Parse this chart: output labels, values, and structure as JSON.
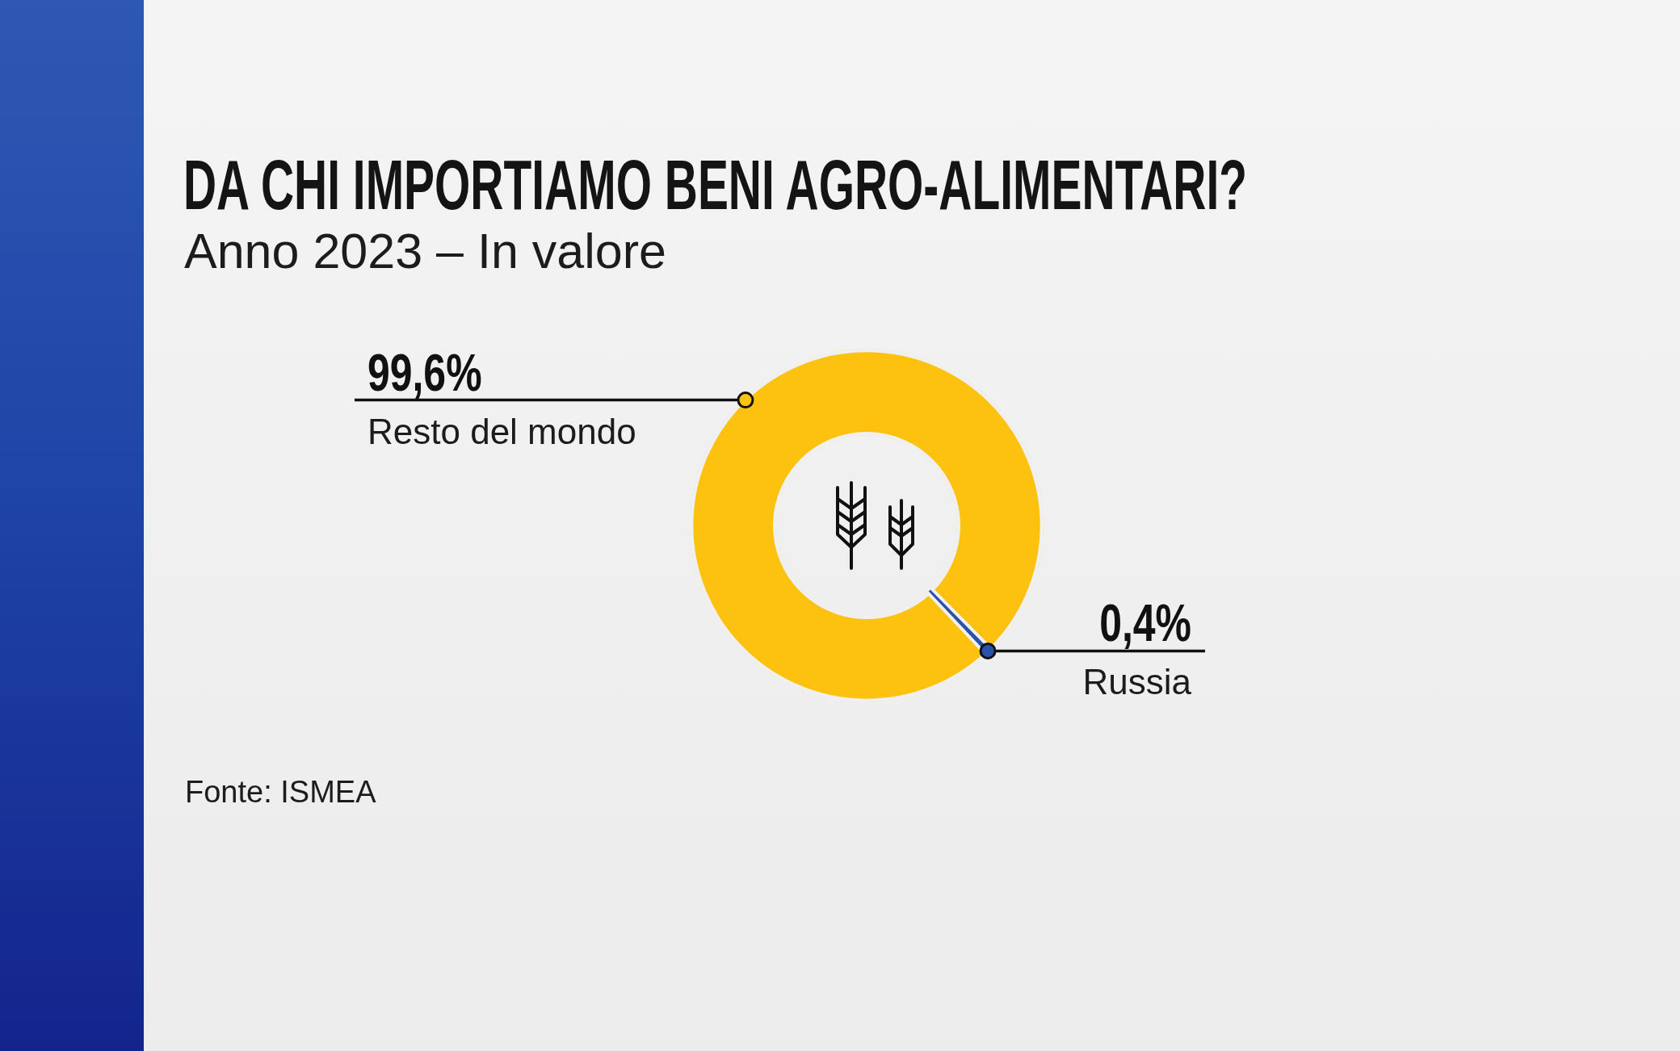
{
  "chart_data": {
    "type": "donut",
    "title": "DA CHI IMPORTIAMO BENI AGRO-ALIMENTARI?",
    "subtitle": "Anno 2023 – In valore",
    "categories": [
      "Resto del mondo",
      "Russia"
    ],
    "values": [
      99.6,
      0.4
    ],
    "colors": [
      "#fdc10f",
      "#2a52a8"
    ],
    "value_labels": [
      "99,6%",
      "0,4%"
    ],
    "annotations": [
      "Fonte: ISMEA"
    ]
  }
}
